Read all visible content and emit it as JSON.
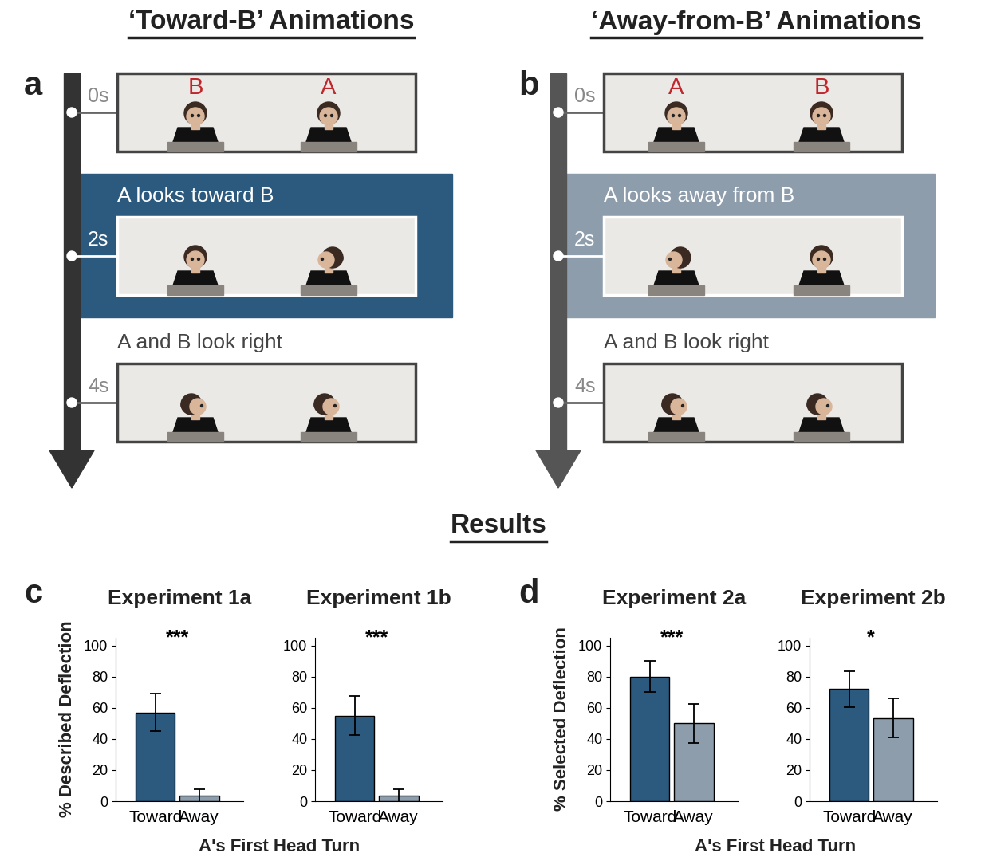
{
  "header": {
    "titles": [
      "‘Toward-B’ Animations",
      "‘Away-from-B’ Animations"
    ],
    "results_title": "Results"
  },
  "animations": [
    {
      "panel": "a",
      "frames": [
        {
          "time": "0s",
          "labels": [
            "B",
            "A"
          ]
        },
        {
          "time": "2s",
          "caption": "A looks toward B"
        },
        {
          "time": "4s",
          "caption": "A and B look right"
        }
      ]
    },
    {
      "panel": "b",
      "frames": [
        {
          "time": "0s",
          "labels": [
            "A",
            "B"
          ]
        },
        {
          "time": "2s",
          "caption": "A looks away from B"
        },
        {
          "time": "4s",
          "caption": "A and B look right"
        }
      ]
    }
  ],
  "result_panels": [
    {
      "panel": "c",
      "y_label": "% Described Deflection",
      "x_label": "A's First Head Turn"
    },
    {
      "panel": "d",
      "y_label": "% Selected Deflection",
      "x_label": "A's First Head Turn"
    }
  ],
  "chart_data": [
    {
      "type": "bar",
      "title": "Experiment 1a",
      "categories": [
        "Toward",
        "Away"
      ],
      "values": [
        57,
        3.5
      ],
      "errors": [
        12,
        4
      ],
      "colors": [
        "#2b5a7e",
        "#8e9dac"
      ],
      "ylim": [
        0,
        105
      ],
      "yticks": [
        0,
        20,
        40,
        60,
        80,
        100
      ],
      "annotation": "***"
    },
    {
      "type": "bar",
      "title": "Experiment 1b",
      "categories": [
        "Toward",
        "Away"
      ],
      "values": [
        55,
        3.5
      ],
      "errors": [
        12.5,
        4
      ],
      "colors": [
        "#2b5a7e",
        "#8e9dac"
      ],
      "ylim": [
        0,
        105
      ],
      "yticks": [
        0,
        20,
        40,
        60,
        80,
        100
      ],
      "annotation": "***"
    },
    {
      "type": "bar",
      "title": "Experiment 2a",
      "categories": [
        "Toward",
        "Away"
      ],
      "values": [
        80,
        50
      ],
      "errors": [
        10,
        12.5
      ],
      "colors": [
        "#2b5a7e",
        "#8e9dac"
      ],
      "ylim": [
        0,
        105
      ],
      "yticks": [
        0,
        20,
        40,
        60,
        80,
        100
      ],
      "annotation": "***"
    },
    {
      "type": "bar",
      "title": "Experiment 2b",
      "categories": [
        "Toward",
        "Away"
      ],
      "values": [
        72,
        53.5
      ],
      "errors": [
        11.5,
        12.5
      ],
      "colors": [
        "#2b5a7e",
        "#8e9dac"
      ],
      "ylim": [
        0,
        105
      ],
      "yticks": [
        0,
        20,
        40,
        60,
        80,
        100
      ],
      "annotation": "*"
    }
  ]
}
